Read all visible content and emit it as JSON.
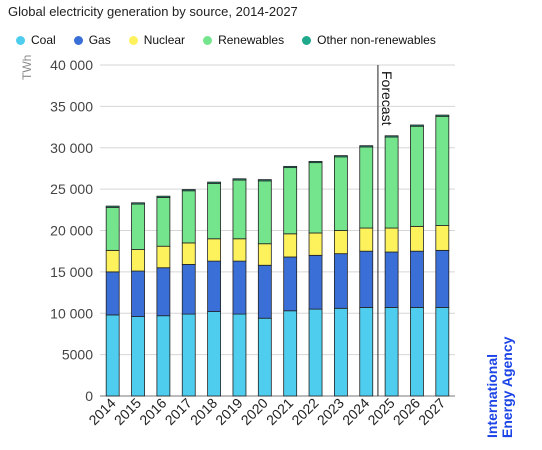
{
  "title": "Global electricity generation by source, 2014-2027",
  "legend": [
    {
      "label": "Coal",
      "color": "#4fcdef"
    },
    {
      "label": "Gas",
      "color": "#3b6fd8"
    },
    {
      "label": "Nuclear",
      "color": "#fdf25c"
    },
    {
      "label": "Renewables",
      "color": "#74e58c"
    },
    {
      "label": "Other non-renewables",
      "color": "#1fa98c"
    }
  ],
  "forecast_label": "Forecast",
  "branding": {
    "line1": "International",
    "line2": "Energy Agency"
  },
  "chart_data": {
    "type": "bar",
    "stacked": true,
    "title": "Global electricity generation by source, 2014-2027",
    "ylabel": "TWh",
    "xlabel": "",
    "ylim": [
      0,
      40000
    ],
    "yticks": [
      0,
      5000,
      10000,
      15000,
      20000,
      25000,
      30000,
      35000,
      40000
    ],
    "ytick_labels": [
      "0",
      "5000",
      "10 000",
      "15 000",
      "20 000",
      "25 000",
      "30 000",
      "35 000",
      "40 000"
    ],
    "grid": true,
    "legend_position": "top",
    "categories": [
      "2014",
      "2015",
      "2016",
      "2017",
      "2018",
      "2019",
      "2020",
      "2021",
      "2022",
      "2023",
      "2024",
      "2025",
      "2026",
      "2027"
    ],
    "forecast_start": "2025",
    "series": [
      {
        "name": "Coal",
        "color": "#4fcdef",
        "values": [
          9800,
          9600,
          9700,
          9900,
          10200,
          9900,
          9400,
          10300,
          10500,
          10600,
          10700,
          10700,
          10700,
          10700
        ]
      },
      {
        "name": "Gas",
        "color": "#3b6fd8",
        "values": [
          5200,
          5500,
          5800,
          6000,
          6100,
          6400,
          6400,
          6500,
          6500,
          6600,
          6800,
          6700,
          6800,
          6900
        ]
      },
      {
        "name": "Nuclear",
        "color": "#fdf25c",
        "values": [
          2600,
          2600,
          2600,
          2600,
          2700,
          2700,
          2600,
          2800,
          2700,
          2800,
          2800,
          2900,
          3000,
          3000
        ]
      },
      {
        "name": "Renewables",
        "color": "#74e58c",
        "values": [
          5200,
          5500,
          5900,
          6300,
          6700,
          7100,
          7600,
          8000,
          8500,
          8900,
          9800,
          11000,
          12100,
          13200
        ]
      },
      {
        "name": "Other non-renewables",
        "color": "#1fa98c",
        "values": [
          150,
          150,
          150,
          150,
          150,
          150,
          150,
          150,
          150,
          150,
          150,
          150,
          150,
          150
        ]
      }
    ]
  }
}
